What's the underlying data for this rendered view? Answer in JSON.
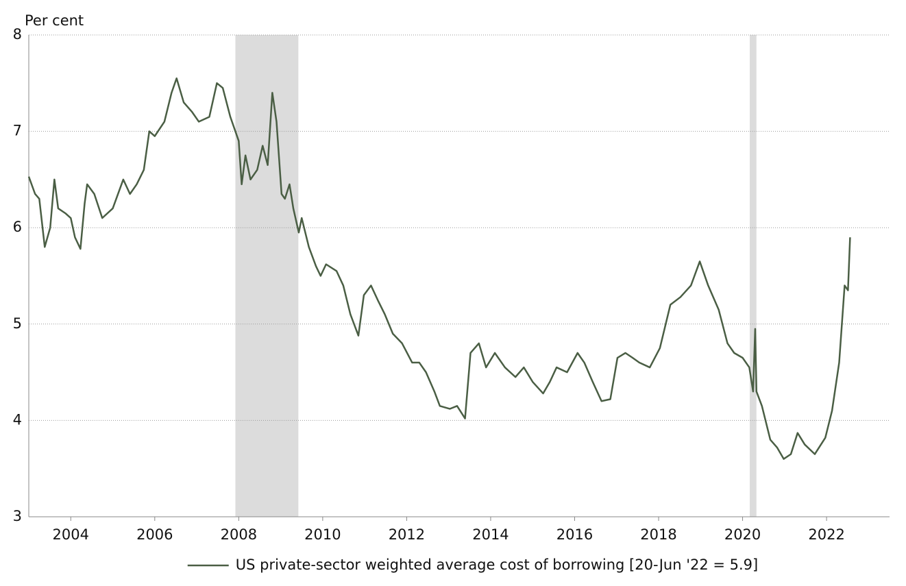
{
  "chart_data": {
    "type": "line",
    "title": "Per cent",
    "x": [
      2003.0,
      2003.15,
      2003.25,
      2003.38,
      2003.51,
      2003.61,
      2003.7,
      2003.87,
      2004.0,
      2004.1,
      2004.23,
      2004.33,
      2004.39,
      2004.56,
      2004.75,
      2005.0,
      2005.25,
      2005.41,
      2005.57,
      2005.74,
      2005.87,
      2006.0,
      2006.23,
      2006.4,
      2006.52,
      2006.69,
      2006.89,
      2007.05,
      2007.3,
      2007.48,
      2007.62,
      2007.8,
      2008.0,
      2008.07,
      2008.16,
      2008.28,
      2008.44,
      2008.57,
      2008.69,
      2008.8,
      2008.9,
      2009.02,
      2009.1,
      2009.21,
      2009.3,
      2009.43,
      2009.5,
      2009.67,
      2009.84,
      2009.95,
      2010.08,
      2010.33,
      2010.49,
      2010.66,
      2010.85,
      2010.98,
      2011.15,
      2011.31,
      2011.48,
      2011.67,
      2011.89,
      2012.13,
      2012.3,
      2012.46,
      2012.66,
      2012.79,
      2013.03,
      2013.2,
      2013.39,
      2013.52,
      2013.72,
      2013.89,
      2014.1,
      2014.34,
      2014.59,
      2014.79,
      2015.0,
      2015.25,
      2015.41,
      2015.57,
      2015.82,
      2016.07,
      2016.23,
      2016.43,
      2016.64,
      2016.85,
      2017.02,
      2017.21,
      2017.38,
      2017.54,
      2017.79,
      2018.03,
      2018.28,
      2018.52,
      2018.77,
      2018.98,
      2019.18,
      2019.43,
      2019.64,
      2019.8,
      2020.0,
      2020.16,
      2020.25,
      2020.3,
      2020.33,
      2020.46,
      2020.66,
      2020.82,
      2020.98,
      2021.15,
      2021.31,
      2021.48,
      2021.72,
      2021.97,
      2022.13,
      2022.3,
      2022.43,
      2022.51,
      2022.56
    ],
    "series": [
      {
        "name": "US private-sector weighted average cost of borrowing [20-Jun '22 = 5.9]",
        "color": "#4a5e44",
        "values": [
          6.53,
          6.35,
          6.3,
          5.8,
          6.0,
          6.5,
          6.2,
          6.15,
          6.1,
          5.9,
          5.78,
          6.25,
          6.45,
          6.35,
          6.1,
          6.2,
          6.5,
          6.35,
          6.45,
          6.6,
          7.0,
          6.95,
          7.1,
          7.4,
          7.55,
          7.3,
          7.2,
          7.1,
          7.15,
          7.5,
          7.45,
          7.15,
          6.9,
          6.45,
          6.75,
          6.5,
          6.6,
          6.85,
          6.65,
          7.4,
          7.1,
          6.35,
          6.3,
          6.45,
          6.2,
          5.95,
          6.1,
          5.8,
          5.6,
          5.5,
          5.62,
          5.55,
          5.4,
          5.1,
          4.88,
          5.3,
          5.4,
          5.25,
          5.1,
          4.9,
          4.8,
          4.6,
          4.6,
          4.5,
          4.3,
          4.15,
          4.12,
          4.15,
          4.02,
          4.7,
          4.8,
          4.55,
          4.7,
          4.55,
          4.45,
          4.55,
          4.4,
          4.28,
          4.4,
          4.55,
          4.5,
          4.7,
          4.6,
          4.4,
          4.2,
          4.22,
          4.65,
          4.7,
          4.65,
          4.6,
          4.55,
          4.75,
          5.2,
          5.28,
          5.4,
          5.65,
          5.4,
          5.15,
          4.8,
          4.7,
          4.65,
          4.55,
          4.3,
          4.95,
          4.3,
          4.15,
          3.8,
          3.72,
          3.6,
          3.65,
          3.87,
          3.75,
          3.65,
          3.82,
          4.1,
          4.6,
          5.4,
          5.35,
          5.9
        ]
      }
    ],
    "recessions": [
      [
        2007.92,
        2009.42
      ],
      [
        2020.17,
        2020.33
      ]
    ],
    "recession_color": "#dcdcdc",
    "xlim": [
      2003,
      2023.5
    ],
    "xticks": [
      2004,
      2006,
      2008,
      2010,
      2012,
      2014,
      2016,
      2018,
      2020,
      2022
    ],
    "ylim": [
      3,
      8
    ],
    "yticks": [
      3,
      4,
      5,
      6,
      7,
      8
    ],
    "grid": true,
    "legend": "bottom"
  }
}
